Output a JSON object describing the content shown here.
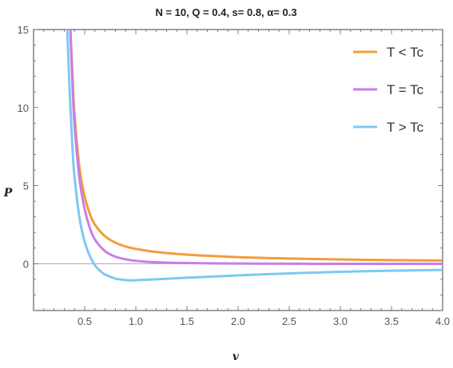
{
  "chart_data": {
    "type": "line",
    "title": "N = 10, Q = 0.4, s= 0.8, α= 0.3",
    "xlabel": "v",
    "ylabel": "P",
    "xlim": [
      0.0,
      4.0
    ],
    "ylim": [
      -3.0,
      15.0
    ],
    "x_ticks": [
      "0.5",
      "1.0",
      "1.5",
      "2.0",
      "2.5",
      "3.0",
      "3.5",
      "4.0"
    ],
    "y_ticks": [
      "0",
      "5",
      "10",
      "15"
    ],
    "legend_position": "top-right",
    "series": [
      {
        "name": "T < Tc",
        "color": "#f39c3a",
        "x": [
          0.36,
          0.38,
          0.4,
          0.45,
          0.5,
          0.55,
          0.6,
          0.7,
          0.8,
          0.9,
          1.0,
          1.2,
          1.5,
          2.0,
          2.5,
          3.0,
          3.5,
          4.0
        ],
        "y": [
          15.0,
          12.2,
          9.6,
          6.1,
          4.3,
          3.2,
          2.5,
          1.75,
          1.35,
          1.1,
          0.95,
          0.75,
          0.58,
          0.42,
          0.33,
          0.27,
          0.23,
          0.2
        ]
      },
      {
        "name": "T = Tc",
        "color": "#c77ee8",
        "x": [
          0.36,
          0.38,
          0.4,
          0.45,
          0.5,
          0.55,
          0.6,
          0.7,
          0.8,
          0.9,
          1.0,
          1.2,
          1.5,
          2.0,
          2.5,
          3.0,
          3.5,
          4.0
        ],
        "y": [
          15.0,
          11.6,
          9.0,
          5.4,
          3.5,
          2.3,
          1.55,
          0.8,
          0.45,
          0.28,
          0.18,
          0.09,
          0.04,
          0.01,
          0.0,
          -0.01,
          -0.01,
          -0.01
        ]
      },
      {
        "name": "T > Tc",
        "color": "#7ec8f2",
        "x": [
          0.33,
          0.35,
          0.38,
          0.4,
          0.45,
          0.5,
          0.55,
          0.6,
          0.65,
          0.7,
          0.8,
          0.9,
          0.95,
          1.0,
          1.2,
          1.5,
          2.0,
          2.5,
          3.0,
          3.5,
          4.0
        ],
        "y": [
          15.0,
          11.5,
          7.5,
          5.6,
          2.9,
          1.4,
          0.5,
          -0.1,
          -0.45,
          -0.7,
          -0.95,
          -1.05,
          -1.07,
          -1.06,
          -1.0,
          -0.9,
          -0.75,
          -0.62,
          -0.52,
          -0.45,
          -0.4
        ]
      }
    ]
  }
}
